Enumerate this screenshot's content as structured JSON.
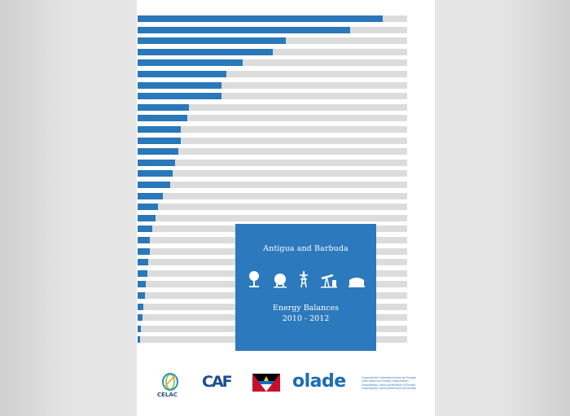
{
  "document": {
    "country": "Antigua and Barbuda",
    "report_title": "Energy Balances",
    "period": "2010 - 2012"
  },
  "bar_graphic": {
    "bar_color": "#2a78b9",
    "track_color": "#dcdcdc",
    "fill_levels": [
      0.91,
      0.79,
      0.55,
      0.5,
      0.39,
      0.33,
      0.31,
      0.31,
      0.19,
      0.185,
      0.16,
      0.16,
      0.15,
      0.14,
      0.13,
      0.12,
      0.095,
      0.075,
      0.065,
      0.055,
      0.045,
      0.045,
      0.04,
      0.035,
      0.03,
      0.028,
      0.02,
      0.018,
      0.012,
      0.01
    ]
  },
  "box": {
    "background": "#2d79bd",
    "icons": [
      "tree-icon",
      "gas-tank-icon",
      "power-tower-icon",
      "oil-pump-jack-icon",
      "oil-storage-tank-icon"
    ]
  },
  "logos": {
    "celac": "CELAC",
    "caf": "CAF",
    "flag": "antigua-and-barbuda-flag",
    "olade": "olade",
    "olade_desc_lines": [
      "Organización Latinoamericana de Energía",
      "Latin American Energy Organization",
      "Organisation Latino-américaine d'Énergie",
      "Organização Latino-americana de Energia"
    ]
  }
}
